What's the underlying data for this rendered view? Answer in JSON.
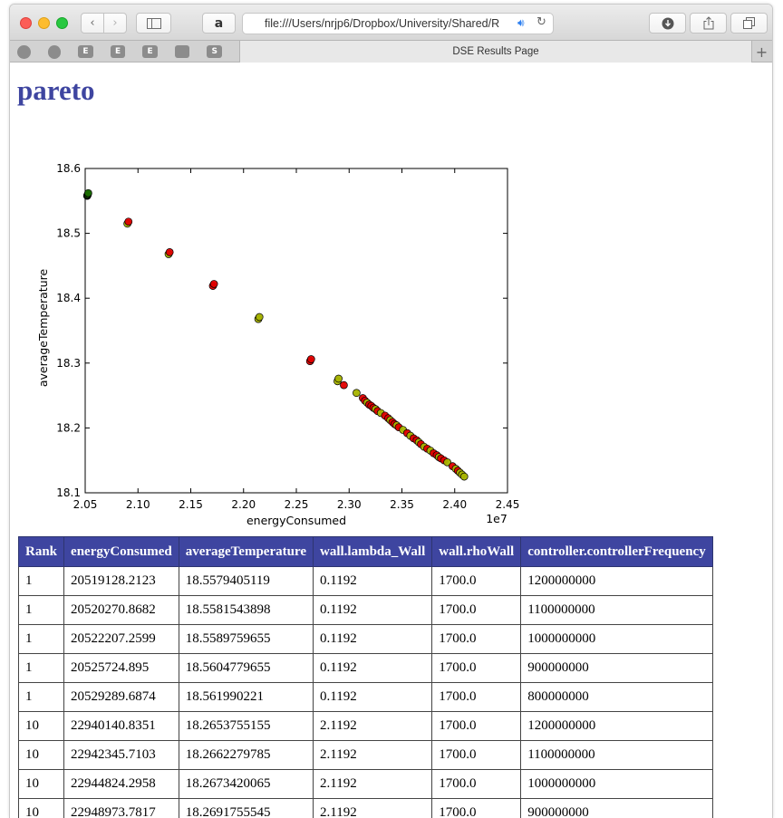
{
  "browser": {
    "url": "file:///Users/nrjp6/Dropbox/University/Shared/R",
    "tab_title": "DSE Results Page",
    "amazon_glyph": "a",
    "bookmarks": [
      "",
      "",
      "E",
      "E",
      "E",
      "",
      "S"
    ]
  },
  "page": {
    "title": "pareto"
  },
  "chart_data": {
    "type": "scatter",
    "xlabel": "energyConsumed",
    "ylabel": "averageTemperature",
    "x_multiplier": "1e7",
    "xlim": [
      2.05,
      2.45
    ],
    "ylim": [
      18.1,
      18.6
    ],
    "x_ticks": [
      "2.05",
      "2.10",
      "2.15",
      "2.20",
      "2.25",
      "2.30",
      "2.35",
      "2.40",
      "2.45"
    ],
    "y_ticks": [
      "18.1",
      "18.2",
      "18.3",
      "18.4",
      "18.5",
      "18.6"
    ],
    "colors": {
      "green": "#1a6b00",
      "yellow": "#a8b400",
      "red": "#e00000"
    },
    "points": [
      {
        "x": 2.0519,
        "y": 18.5579,
        "c": "green"
      },
      {
        "x": 2.052,
        "y": 18.5582,
        "c": "green"
      },
      {
        "x": 2.0522,
        "y": 18.559,
        "c": "green"
      },
      {
        "x": 2.0526,
        "y": 18.5605,
        "c": "green"
      },
      {
        "x": 2.0529,
        "y": 18.562,
        "c": "green"
      },
      {
        "x": 2.09,
        "y": 18.515,
        "c": "yellow"
      },
      {
        "x": 2.091,
        "y": 18.518,
        "c": "red"
      },
      {
        "x": 2.129,
        "y": 18.468,
        "c": "yellow"
      },
      {
        "x": 2.13,
        "y": 18.471,
        "c": "red"
      },
      {
        "x": 2.171,
        "y": 18.419,
        "c": "red"
      },
      {
        "x": 2.172,
        "y": 18.422,
        "c": "red"
      },
      {
        "x": 2.214,
        "y": 18.368,
        "c": "yellow"
      },
      {
        "x": 2.215,
        "y": 18.371,
        "c": "yellow"
      },
      {
        "x": 2.263,
        "y": 18.303,
        "c": "red"
      },
      {
        "x": 2.264,
        "y": 18.306,
        "c": "red"
      },
      {
        "x": 2.289,
        "y": 18.272,
        "c": "yellow"
      },
      {
        "x": 2.29,
        "y": 18.276,
        "c": "yellow"
      },
      {
        "x": 2.295,
        "y": 18.266,
        "c": "red"
      },
      {
        "x": 2.307,
        "y": 18.254,
        "c": "yellow"
      },
      {
        "x": 2.313,
        "y": 18.246,
        "c": "red"
      },
      {
        "x": 2.315,
        "y": 18.242,
        "c": "red"
      },
      {
        "x": 2.317,
        "y": 18.239,
        "c": "yellow"
      },
      {
        "x": 2.319,
        "y": 18.236,
        "c": "red"
      },
      {
        "x": 2.321,
        "y": 18.234,
        "c": "red"
      },
      {
        "x": 2.323,
        "y": 18.231,
        "c": "red"
      },
      {
        "x": 2.325,
        "y": 18.229,
        "c": "yellow"
      },
      {
        "x": 2.327,
        "y": 18.226,
        "c": "red"
      },
      {
        "x": 2.33,
        "y": 18.223,
        "c": "yellow"
      },
      {
        "x": 2.334,
        "y": 18.219,
        "c": "red"
      },
      {
        "x": 2.337,
        "y": 18.215,
        "c": "red"
      },
      {
        "x": 2.339,
        "y": 18.212,
        "c": "yellow"
      },
      {
        "x": 2.341,
        "y": 18.209,
        "c": "red"
      },
      {
        "x": 2.343,
        "y": 18.206,
        "c": "red"
      },
      {
        "x": 2.345,
        "y": 18.204,
        "c": "yellow"
      },
      {
        "x": 2.347,
        "y": 18.201,
        "c": "red"
      },
      {
        "x": 2.351,
        "y": 18.197,
        "c": "yellow"
      },
      {
        "x": 2.355,
        "y": 18.192,
        "c": "red"
      },
      {
        "x": 2.358,
        "y": 18.188,
        "c": "yellow"
      },
      {
        "x": 2.361,
        "y": 18.184,
        "c": "red"
      },
      {
        "x": 2.364,
        "y": 18.181,
        "c": "red"
      },
      {
        "x": 2.366,
        "y": 18.178,
        "c": "yellow"
      },
      {
        "x": 2.368,
        "y": 18.175,
        "c": "red"
      },
      {
        "x": 2.371,
        "y": 18.171,
        "c": "yellow"
      },
      {
        "x": 2.374,
        "y": 18.168,
        "c": "red"
      },
      {
        "x": 2.377,
        "y": 18.165,
        "c": "yellow"
      },
      {
        "x": 2.38,
        "y": 18.161,
        "c": "red"
      },
      {
        "x": 2.383,
        "y": 18.158,
        "c": "red"
      },
      {
        "x": 2.385,
        "y": 18.155,
        "c": "yellow"
      },
      {
        "x": 2.387,
        "y": 18.153,
        "c": "red"
      },
      {
        "x": 2.39,
        "y": 18.15,
        "c": "red"
      },
      {
        "x": 2.393,
        "y": 18.147,
        "c": "yellow"
      },
      {
        "x": 2.398,
        "y": 18.141,
        "c": "red"
      },
      {
        "x": 2.401,
        "y": 18.137,
        "c": "yellow"
      },
      {
        "x": 2.403,
        "y": 18.134,
        "c": "red"
      },
      {
        "x": 2.405,
        "y": 18.131,
        "c": "yellow"
      },
      {
        "x": 2.407,
        "y": 18.128,
        "c": "yellow"
      },
      {
        "x": 2.409,
        "y": 18.125,
        "c": "yellow"
      }
    ]
  },
  "table": {
    "headers": [
      "Rank",
      "energyConsumed",
      "averageTemperature",
      "wall.lambda_Wall",
      "wall.rhoWall",
      "controller.controllerFrequency"
    ],
    "rows": [
      [
        "1",
        "20519128.2123",
        "18.5579405119",
        "0.1192",
        "1700.0",
        "1200000000"
      ],
      [
        "1",
        "20520270.8682",
        "18.5581543898",
        "0.1192",
        "1700.0",
        "1100000000"
      ],
      [
        "1",
        "20522207.2599",
        "18.5589759655",
        "0.1192",
        "1700.0",
        "1000000000"
      ],
      [
        "1",
        "20525724.895",
        "18.5604779655",
        "0.1192",
        "1700.0",
        "900000000"
      ],
      [
        "1",
        "20529289.6874",
        "18.561990221",
        "0.1192",
        "1700.0",
        "800000000"
      ],
      [
        "10",
        "22940140.8351",
        "18.2653755155",
        "2.1192",
        "1700.0",
        "1200000000"
      ],
      [
        "10",
        "22942345.7103",
        "18.2662279785",
        "2.1192",
        "1700.0",
        "1100000000"
      ],
      [
        "10",
        "22944824.2958",
        "18.2673420065",
        "2.1192",
        "1700.0",
        "1000000000"
      ],
      [
        "10",
        "22948973.7817",
        "18.2691755545",
        "2.1192",
        "1700.0",
        "900000000"
      ]
    ]
  }
}
